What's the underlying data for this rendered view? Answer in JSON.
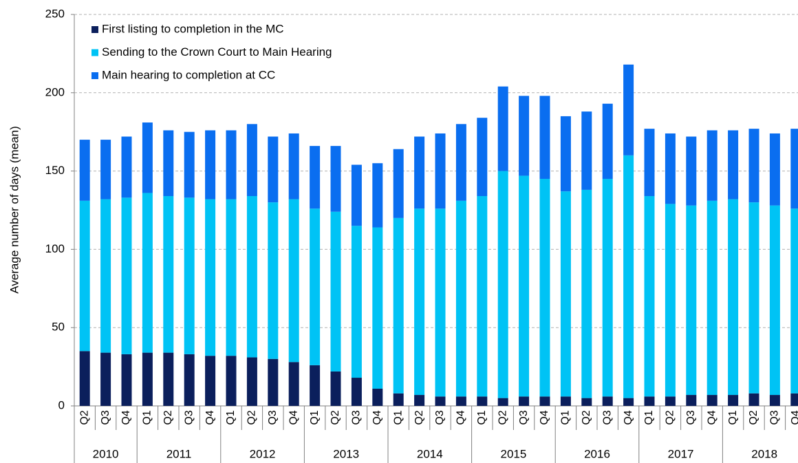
{
  "chart_data": {
    "type": "stacked_bar",
    "y_label": "Average number of days (mean)",
    "groups": [
      {
        "name": "2010",
        "categories": [
          "Q2",
          "Q3",
          "Q4"
        ]
      },
      {
        "name": "2011",
        "categories": [
          "Q1",
          "Q2",
          "Q3",
          "Q4"
        ]
      },
      {
        "name": "2012",
        "categories": [
          "Q1",
          "Q2",
          "Q3",
          "Q4"
        ]
      },
      {
        "name": "2013",
        "categories": [
          "Q1",
          "Q2",
          "Q3",
          "Q4"
        ]
      },
      {
        "name": "2014",
        "categories": [
          "Q1",
          "Q2",
          "Q3",
          "Q4"
        ]
      },
      {
        "name": "2015",
        "categories": [
          "Q1",
          "Q2",
          "Q3",
          "Q4"
        ]
      },
      {
        "name": "2016",
        "categories": [
          "Q1",
          "Q2",
          "Q3",
          "Q4"
        ]
      },
      {
        "name": "2017",
        "categories": [
          "Q1",
          "Q2",
          "Q3",
          "Q4"
        ]
      },
      {
        "name": "2018",
        "categories": [
          "Q1",
          "Q2",
          "Q3",
          "Q4"
        ]
      }
    ],
    "series": [
      {
        "name": "First listing to completion in the MC",
        "color": "#0b1f5c",
        "values": [
          35,
          34,
          33,
          34,
          34,
          33,
          32,
          32,
          31,
          30,
          28,
          26,
          22,
          18,
          11,
          8,
          7,
          6,
          6,
          6,
          5,
          6,
          6,
          6,
          5,
          6,
          5,
          6,
          6,
          7,
          7,
          7,
          8,
          7,
          8
        ]
      },
      {
        "name": "Sending to the Crown Court to Main Hearing",
        "color": "#00c3f5",
        "values": [
          96,
          98,
          100,
          102,
          100,
          100,
          100,
          100,
          103,
          100,
          104,
          100,
          102,
          97,
          103,
          112,
          119,
          120,
          125,
          128,
          145,
          141,
          139,
          131,
          133,
          139,
          155,
          128,
          123,
          121,
          124,
          125,
          122,
          121,
          118
        ]
      },
      {
        "name": "Main hearing to completion at CC",
        "color": "#0a6ef0",
        "values": [
          39,
          38,
          39,
          45,
          42,
          42,
          44,
          44,
          46,
          42,
          42,
          40,
          42,
          39,
          41,
          44,
          46,
          48,
          49,
          50,
          54,
          51,
          53,
          48,
          50,
          48,
          58,
          43,
          45,
          44,
          45,
          44,
          47,
          46,
          51
        ]
      }
    ],
    "ylim": [
      0,
      250
    ],
    "yticks": [
      0,
      50,
      100,
      150,
      200,
      250
    ],
    "grid": true,
    "legend": "top-left"
  }
}
